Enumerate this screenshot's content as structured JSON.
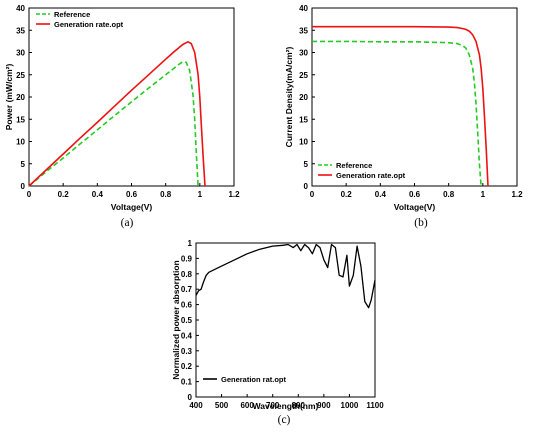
{
  "chart_data": [
    {
      "type": "line",
      "panel": "(a)",
      "xlabel": "Voltage(V)",
      "ylabel": "Power (mW/cm²)",
      "xlim": [
        0,
        1.2
      ],
      "ylim": [
        0,
        40
      ],
      "xticks": [
        "0",
        "0.2",
        "0.4",
        "0.6",
        "0.8",
        "1",
        "1.2"
      ],
      "yticks": [
        "0",
        "5",
        "10",
        "15",
        "20",
        "25",
        "30",
        "35",
        "40"
      ],
      "legend": "top-left",
      "series": [
        {
          "name": "Reference",
          "color": "#22cc22",
          "style": "dashed",
          "x": [
            0,
            0.1,
            0.2,
            0.3,
            0.4,
            0.5,
            0.6,
            0.7,
            0.8,
            0.85,
            0.88,
            0.9,
            0.92,
            0.94,
            0.96,
            0.97,
            0.98,
            0.99
          ],
          "y": [
            0,
            3.2,
            6.3,
            9.5,
            12.6,
            15.8,
            18.9,
            22.0,
            25.0,
            26.5,
            27.4,
            27.9,
            27.8,
            26.0,
            20.5,
            15.0,
            7.0,
            0
          ]
        },
        {
          "name": "Generation rate.opt",
          "color": "#ee1111",
          "style": "solid",
          "x": [
            0,
            0.1,
            0.2,
            0.3,
            0.4,
            0.5,
            0.6,
            0.7,
            0.8,
            0.85,
            0.9,
            0.93,
            0.95,
            0.97,
            0.99,
            1.0,
            1.01,
            1.02,
            1.03
          ],
          "y": [
            0,
            3.6,
            7.2,
            10.8,
            14.3,
            17.9,
            21.5,
            25.0,
            28.5,
            30.2,
            31.8,
            32.4,
            32.0,
            30.0,
            25.0,
            20.0,
            13.0,
            6.0,
            0
          ]
        }
      ]
    },
    {
      "type": "line",
      "panel": "(b)",
      "xlabel": "Voltage(V)",
      "ylabel": "Current Density(mA/cm²)",
      "xlim": [
        0,
        1.2
      ],
      "ylim": [
        0,
        40
      ],
      "xticks": [
        "0",
        "0.2",
        "0.4",
        "0.6",
        "0.8",
        "1",
        "1.2"
      ],
      "yticks": [
        "0",
        "5",
        "10",
        "15",
        "20",
        "25",
        "30",
        "35",
        "40"
      ],
      "legend": "bottom-left",
      "series": [
        {
          "name": "Reference",
          "color": "#22cc22",
          "style": "dashed",
          "x": [
            0,
            0.2,
            0.4,
            0.6,
            0.8,
            0.85,
            0.88,
            0.9,
            0.92,
            0.94,
            0.95,
            0.96,
            0.97,
            0.98,
            0.99
          ],
          "y": [
            32.5,
            32.5,
            32.4,
            32.4,
            32.2,
            32.0,
            31.6,
            31.0,
            29.5,
            26.5,
            23.5,
            18.5,
            12.0,
            5.0,
            0
          ]
        },
        {
          "name": "Generation rate.opt",
          "color": "#ee1111",
          "style": "solid",
          "x": [
            0,
            0.2,
            0.4,
            0.6,
            0.8,
            0.85,
            0.88,
            0.9,
            0.92,
            0.94,
            0.96,
            0.98,
            0.99,
            1.0,
            1.01,
            1.02,
            1.03
          ],
          "y": [
            35.8,
            35.8,
            35.8,
            35.8,
            35.7,
            35.6,
            35.4,
            35.2,
            34.8,
            34.0,
            32.5,
            29.5,
            26.5,
            22.0,
            15.5,
            8.0,
            0
          ]
        }
      ]
    },
    {
      "type": "line",
      "panel": "(c)",
      "xlabel": "Wavelength(nm)",
      "ylabel": "Normalized power absorption",
      "xlim": [
        400,
        1100
      ],
      "ylim": [
        0,
        1
      ],
      "xticks": [
        "400",
        "500",
        "600",
        "700",
        "800",
        "900",
        "1000",
        "1100"
      ],
      "yticks": [
        "0",
        "0.1",
        "0.2",
        "0.3",
        "0.4",
        "0.5",
        "0.6",
        "0.7",
        "0.8",
        "0.9",
        "1"
      ],
      "legend": "bottom-left",
      "series": [
        {
          "name": "Generation rat.opt",
          "color": "#000000",
          "style": "solid",
          "x": [
            400,
            410,
            420,
            430,
            440,
            450,
            475,
            500,
            550,
            600,
            650,
            700,
            740,
            760,
            780,
            795,
            810,
            825,
            840,
            855,
            870,
            885,
            900,
            915,
            930,
            945,
            960,
            975,
            990,
            1000,
            1015,
            1030,
            1045,
            1060,
            1075,
            1085,
            1100
          ],
          "y": [
            0.66,
            0.69,
            0.7,
            0.75,
            0.79,
            0.81,
            0.83,
            0.85,
            0.89,
            0.93,
            0.96,
            0.98,
            0.985,
            0.99,
            0.97,
            0.99,
            0.95,
            0.99,
            0.97,
            0.93,
            0.99,
            0.97,
            0.89,
            0.84,
            0.99,
            0.97,
            0.79,
            0.78,
            0.92,
            0.72,
            0.79,
            0.98,
            0.85,
            0.62,
            0.58,
            0.63,
            0.76
          ]
        }
      ]
    }
  ]
}
